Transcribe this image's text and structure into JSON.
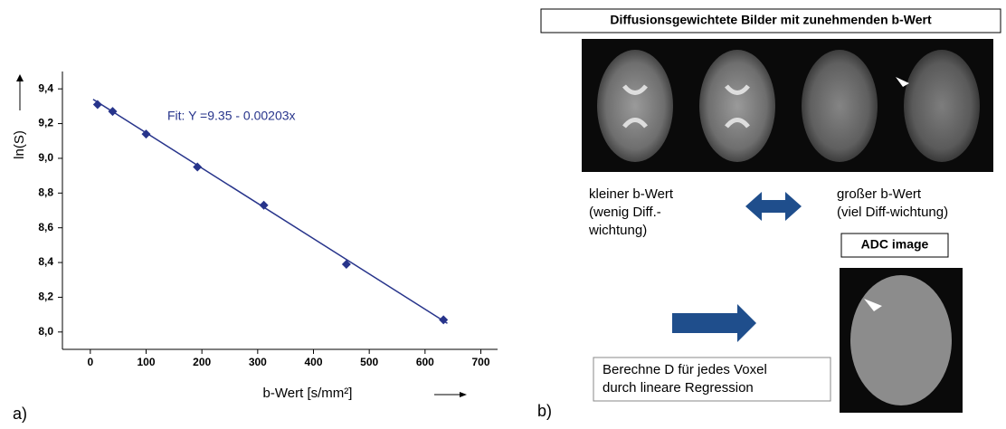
{
  "chart_data": {
    "type": "scatter",
    "ylabel": "ln(S)",
    "xlabel": "b-Wert [s/mm²]",
    "series": [
      {
        "color": "#27348b",
        "x": [
          13,
          40,
          100,
          192,
          311,
          459,
          633
        ],
        "values": [
          9.31,
          9.27,
          9.14,
          8.95,
          8.73,
          8.39,
          8.07
        ]
      }
    ],
    "fit": {
      "label": "Fit: Y =9.35 - 0.00203x",
      "color": "#27348b",
      "x": [
        5,
        640
      ],
      "values": [
        9.34,
        8.05
      ]
    },
    "xlim": [
      -50,
      730
    ],
    "ylim": [
      7.9,
      9.5
    ],
    "xticks": [
      0,
      100,
      200,
      300,
      400,
      500,
      600,
      700
    ],
    "yticks": [
      {
        "value": 8.0,
        "label": "8,0"
      },
      {
        "value": 8.2,
        "label": "8,2"
      },
      {
        "value": 8.4,
        "label": "8,4"
      },
      {
        "value": 8.6,
        "label": "8,6"
      },
      {
        "value": 8.8,
        "label": "8,8"
      },
      {
        "value": 9.0,
        "label": "9,0"
      },
      {
        "value": 9.2,
        "label": "9,2"
      },
      {
        "value": 9.4,
        "label": "9,4"
      }
    ]
  },
  "panels": {
    "a": "a)",
    "b": "b)"
  },
  "diagram": {
    "title": "Diffusionsgewichtete Bilder mit zunehmenden b-Wert",
    "left_caption": [
      "kleiner b-Wert",
      "(wenig Diff.-",
      "wichtung)"
    ],
    "right_caption": [
      "großer b-Wert",
      "(viel Diff-wichtung)"
    ],
    "adc_title": "ADC image",
    "note": [
      "Berechne D für jedes Voxel",
      "durch lineare Regression"
    ]
  }
}
